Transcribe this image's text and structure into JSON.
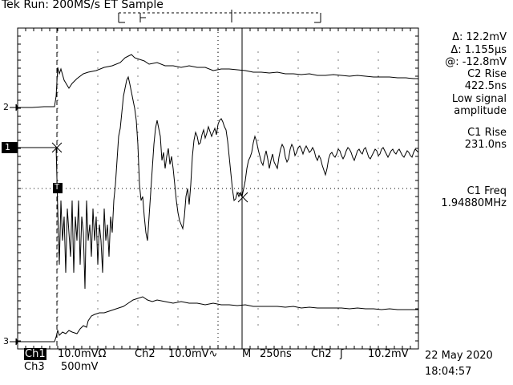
{
  "header": {
    "title": "Tek Run: 200MS/s ET Sample"
  },
  "measurements": {
    "delta_v": "Δ: 12.2mV",
    "delta_t": "Δ: 1.155µs",
    "at_v": "@: -12.8mV",
    "c2_rise_label": "C2 Rise",
    "c2_rise_value": "422.5ns",
    "low_signal_1": "Low signal",
    "low_signal_2": "amplitude",
    "c1_rise_label": "C1 Rise",
    "c1_rise_value": "231.0ns",
    "c1_freq_label": "C1 Freq",
    "c1_freq_value": "1.94880MHz"
  },
  "markers": {
    "ch2": "2",
    "ch1": "1",
    "ch3": "3",
    "trigger": "T"
  },
  "footer": {
    "ch1_label": "Ch1",
    "ch1_scale": "10.0mVΩ",
    "ch2_label": "Ch2",
    "ch2_scale": "10.0mV∿",
    "timebase_label": "M",
    "timebase_value": "250ns",
    "trig_source": "Ch2",
    "trig_level": "10.2mV",
    "ch3_label": "Ch3",
    "ch3_scale": "500mV",
    "date": "22 May 2020",
    "time": "18:04:57"
  },
  "colors": {
    "trace": "#000000",
    "background": "#ffffff"
  }
}
